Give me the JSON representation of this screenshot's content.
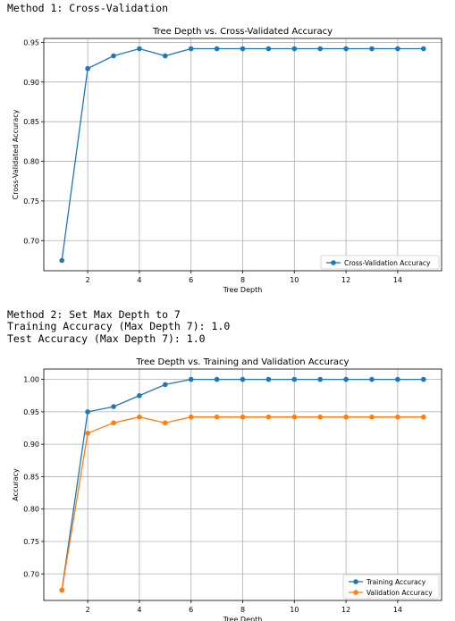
{
  "output": {
    "method1_heading": "Method 1: Cross-Validation",
    "method2_heading": "Method 2: Set Max Depth to 7",
    "training_accuracy_line": "Training Accuracy (Max Depth 7): 1.0",
    "test_accuracy_line": "Test Accuracy (Max Depth 7): 1.0"
  },
  "colors": {
    "blue": "#1f77b4",
    "orange": "#ff7f0e",
    "grid": "#b0b0b0"
  },
  "chart_data": [
    {
      "type": "line",
      "title": "Tree Depth vs. Cross-Validated Accuracy",
      "xlabel": "Tree Depth",
      "ylabel": "Cross-Validated Accuracy",
      "x": [
        1,
        2,
        3,
        4,
        5,
        6,
        7,
        8,
        9,
        10,
        11,
        12,
        13,
        14,
        15
      ],
      "xticks": [
        2,
        4,
        6,
        8,
        10,
        12,
        14
      ],
      "yticks": [
        0.7,
        0.75,
        0.8,
        0.85,
        0.9,
        0.95
      ],
      "xlim": [
        0.3,
        15.7
      ],
      "ylim": [
        0.662,
        0.955
      ],
      "grid": true,
      "legend_position": "lower-right",
      "series": [
        {
          "name": "Cross-Validation Accuracy",
          "color": "#1f77b4",
          "values": [
            0.675,
            0.917,
            0.933,
            0.942,
            0.933,
            0.942,
            0.942,
            0.942,
            0.942,
            0.942,
            0.942,
            0.942,
            0.942,
            0.942,
            0.942
          ]
        }
      ]
    },
    {
      "type": "line",
      "title": "Tree Depth vs. Training and Validation Accuracy",
      "xlabel": "Tree Depth",
      "ylabel": "Accuracy",
      "x": [
        1,
        2,
        3,
        4,
        5,
        6,
        7,
        8,
        9,
        10,
        11,
        12,
        13,
        14,
        15
      ],
      "xticks": [
        2,
        4,
        6,
        8,
        10,
        12,
        14
      ],
      "yticks": [
        0.7,
        0.75,
        0.8,
        0.85,
        0.9,
        0.95,
        1.0
      ],
      "xlim": [
        0.3,
        15.7
      ],
      "ylim": [
        0.659,
        1.016
      ],
      "grid": true,
      "legend_position": "lower-right",
      "series": [
        {
          "name": "Training Accuracy",
          "color": "#1f77b4",
          "values": [
            0.675,
            0.95,
            0.958,
            0.975,
            0.992,
            1.0,
            1.0,
            1.0,
            1.0,
            1.0,
            1.0,
            1.0,
            1.0,
            1.0,
            1.0
          ]
        },
        {
          "name": "Validation Accuracy",
          "color": "#ff7f0e",
          "values": [
            0.675,
            0.917,
            0.933,
            0.942,
            0.933,
            0.942,
            0.942,
            0.942,
            0.942,
            0.942,
            0.942,
            0.942,
            0.942,
            0.942,
            0.942
          ]
        }
      ]
    }
  ]
}
